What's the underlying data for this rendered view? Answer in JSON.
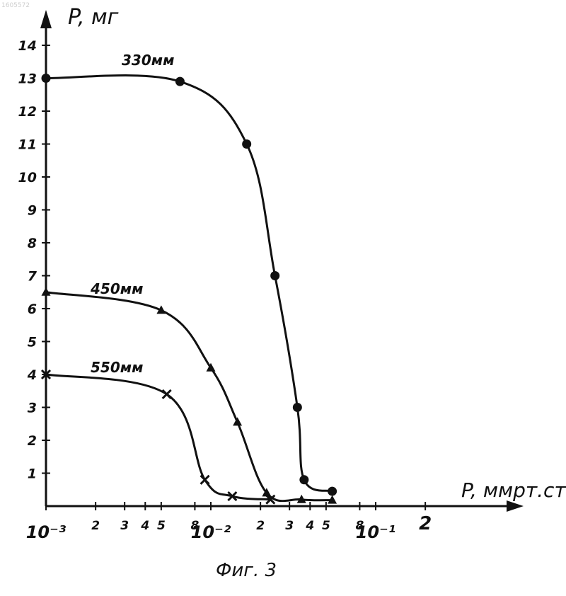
{
  "chart_data": {
    "type": "line",
    "figure_caption": "Фиг. 3",
    "watermark": "1605572",
    "x_axis": {
      "label": "P, ммрт.ст",
      "scale": "log",
      "range": [
        0.001,
        0.2
      ],
      "ticks": [
        {
          "value": 0.001,
          "label": "10⁻³"
        },
        {
          "value": 0.002,
          "label": "2"
        },
        {
          "value": 0.003,
          "label": "3"
        },
        {
          "value": 0.004,
          "label": "4"
        },
        {
          "value": 0.005,
          "label": "5"
        },
        {
          "value": 0.008,
          "label": "8"
        },
        {
          "value": 0.01,
          "label": "10⁻²"
        },
        {
          "value": 0.02,
          "label": "2"
        },
        {
          "value": 0.03,
          "label": "3"
        },
        {
          "value": 0.04,
          "label": "4"
        },
        {
          "value": 0.05,
          "label": "5"
        },
        {
          "value": 0.08,
          "label": "8"
        },
        {
          "value": 0.1,
          "label": "10⁻¹"
        },
        {
          "value": 0.2,
          "label": "2"
        }
      ]
    },
    "y_axis": {
      "label": "P, мг",
      "range": [
        0,
        14
      ],
      "ticks": [
        1,
        2,
        3,
        4,
        5,
        6,
        7,
        8,
        9,
        10,
        11,
        12,
        13,
        14
      ]
    },
    "grid": false,
    "series": [
      {
        "name": "330мм",
        "marker": "circle",
        "points": [
          {
            "x": 0.001,
            "y": 13.0
          },
          {
            "x": 0.0065,
            "y": 12.9
          },
          {
            "x": 0.0165,
            "y": 11.0
          },
          {
            "x": 0.0245,
            "y": 7.0
          },
          {
            "x": 0.0335,
            "y": 3.0
          },
          {
            "x": 0.0368,
            "y": 0.8
          },
          {
            "x": 0.0545,
            "y": 0.45
          }
        ]
      },
      {
        "name": "450мм",
        "marker": "triangle",
        "points": [
          {
            "x": 0.001,
            "y": 6.5
          },
          {
            "x": 0.005,
            "y": 5.95
          },
          {
            "x": 0.01,
            "y": 4.2
          },
          {
            "x": 0.0145,
            "y": 2.55
          },
          {
            "x": 0.0218,
            "y": 0.4
          },
          {
            "x": 0.0355,
            "y": 0.2
          },
          {
            "x": 0.0545,
            "y": 0.18
          }
        ]
      },
      {
        "name": "550мм",
        "marker": "cross",
        "points": [
          {
            "x": 0.001,
            "y": 4.0
          },
          {
            "x": 0.0054,
            "y": 3.4
          },
          {
            "x": 0.0092,
            "y": 0.8
          },
          {
            "x": 0.0135,
            "y": 0.3
          },
          {
            "x": 0.023,
            "y": 0.2
          }
        ]
      }
    ]
  }
}
